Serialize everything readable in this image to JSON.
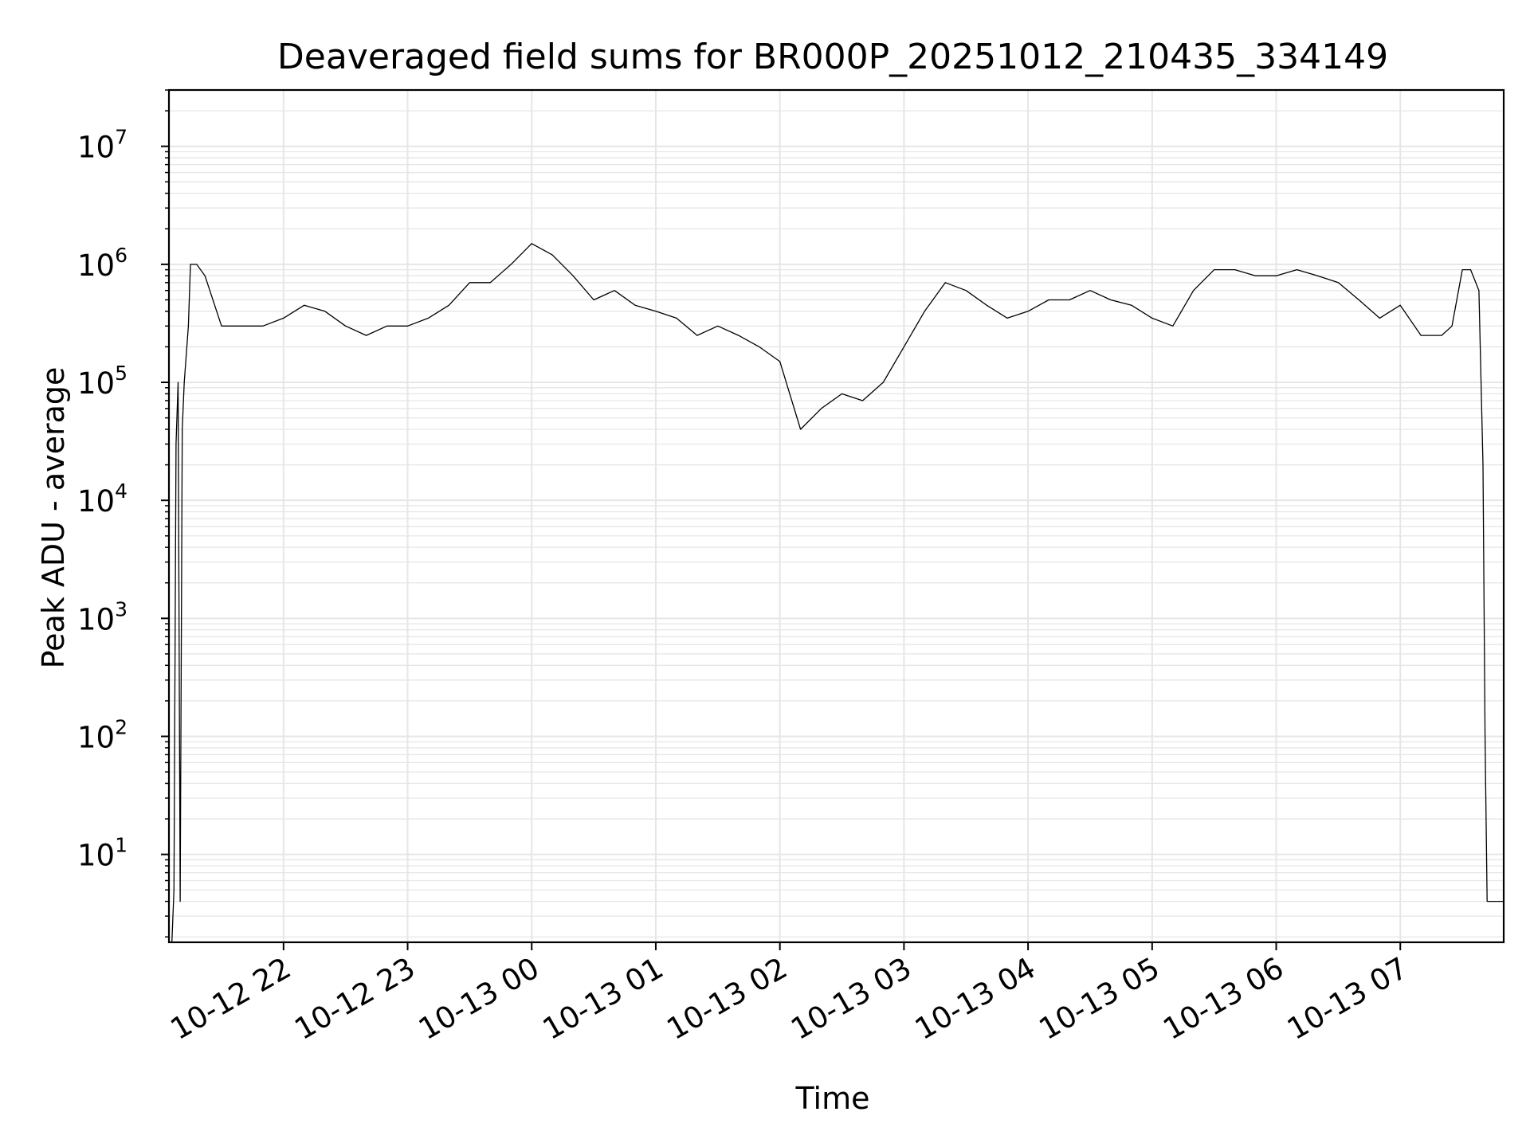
{
  "chart_data": {
    "type": "line",
    "title": "Deaveraged field sums for BR000P_20251012_210435_334149",
    "xlabel": "Time",
    "ylabel": "Peak ADU - average",
    "yscale": "log",
    "ylim": [
      1.8,
      30000000
    ],
    "xlim": [
      "2025-10-12T21:04:35",
      "2025-10-13T07:50:00"
    ],
    "grid": true,
    "grid_minor": true,
    "legend": "none",
    "line_color": "#000000",
    "grid_color": "#e6e6e6",
    "x_ticks": [
      {
        "t": "2025-10-12T22:00:00",
        "label": "10-12 22"
      },
      {
        "t": "2025-10-12T23:00:00",
        "label": "10-12 23"
      },
      {
        "t": "2025-10-13T00:00:00",
        "label": "10-13 00"
      },
      {
        "t": "2025-10-13T01:00:00",
        "label": "10-13 01"
      },
      {
        "t": "2025-10-13T02:00:00",
        "label": "10-13 02"
      },
      {
        "t": "2025-10-13T03:00:00",
        "label": "10-13 03"
      },
      {
        "t": "2025-10-13T04:00:00",
        "label": "10-13 04"
      },
      {
        "t": "2025-10-13T05:00:00",
        "label": "10-13 05"
      },
      {
        "t": "2025-10-13T06:00:00",
        "label": "10-13 06"
      },
      {
        "t": "2025-10-13T07:00:00",
        "label": "10-13 07"
      }
    ],
    "y_ticks": [
      {
        "value": 10,
        "base": "10",
        "exp": "1"
      },
      {
        "value": 100,
        "base": "10",
        "exp": "2"
      },
      {
        "value": 1000,
        "base": "10",
        "exp": "3"
      },
      {
        "value": 10000,
        "base": "10",
        "exp": "4"
      },
      {
        "value": 100000,
        "base": "10",
        "exp": "5"
      },
      {
        "value": 1000000,
        "base": "10",
        "exp": "6"
      },
      {
        "value": 10000000,
        "base": "10",
        "exp": "7"
      }
    ],
    "series": [
      {
        "x": [
          "2025-10-12T21:06:00",
          "2025-10-12T21:07:00",
          "2025-10-12T21:08:00",
          "2025-10-12T21:09:00",
          "2025-10-12T21:10:00",
          "2025-10-12T21:11:00",
          "2025-10-12T21:12:00",
          "2025-10-12T21:14:00",
          "2025-10-12T21:15:00",
          "2025-10-12T21:18:00",
          "2025-10-12T21:22:00",
          "2025-10-12T21:30:00",
          "2025-10-12T21:40:00",
          "2025-10-12T21:50:00",
          "2025-10-12T22:00:00",
          "2025-10-12T22:10:00",
          "2025-10-12T22:20:00",
          "2025-10-12T22:30:00",
          "2025-10-12T22:40:00",
          "2025-10-12T22:50:00",
          "2025-10-12T23:00:00",
          "2025-10-12T23:10:00",
          "2025-10-12T23:20:00",
          "2025-10-12T23:30:00",
          "2025-10-12T23:40:00",
          "2025-10-12T23:50:00",
          "2025-10-13T00:00:00",
          "2025-10-13T00:10:00",
          "2025-10-13T00:20:00",
          "2025-10-13T00:30:00",
          "2025-10-13T00:40:00",
          "2025-10-13T00:50:00",
          "2025-10-13T01:00:00",
          "2025-10-13T01:10:00",
          "2025-10-13T01:20:00",
          "2025-10-13T01:30:00",
          "2025-10-13T01:40:00",
          "2025-10-13T01:50:00",
          "2025-10-13T02:00:00",
          "2025-10-13T02:10:00",
          "2025-10-13T02:20:00",
          "2025-10-13T02:30:00",
          "2025-10-13T02:40:00",
          "2025-10-13T02:50:00",
          "2025-10-13T03:00:00",
          "2025-10-13T03:10:00",
          "2025-10-13T03:20:00",
          "2025-10-13T03:30:00",
          "2025-10-13T03:40:00",
          "2025-10-13T03:50:00",
          "2025-10-13T04:00:00",
          "2025-10-13T04:10:00",
          "2025-10-13T04:20:00",
          "2025-10-13T04:30:00",
          "2025-10-13T04:40:00",
          "2025-10-13T04:50:00",
          "2025-10-13T05:00:00",
          "2025-10-13T05:10:00",
          "2025-10-13T05:20:00",
          "2025-10-13T05:30:00",
          "2025-10-13T05:40:00",
          "2025-10-13T05:50:00",
          "2025-10-13T06:00:00",
          "2025-10-13T06:10:00",
          "2025-10-13T06:20:00",
          "2025-10-13T06:30:00",
          "2025-10-13T06:40:00",
          "2025-10-13T06:50:00",
          "2025-10-13T07:00:00",
          "2025-10-13T07:10:00",
          "2025-10-13T07:20:00",
          "2025-10-13T07:25:00",
          "2025-10-13T07:30:00",
          "2025-10-13T07:34:00",
          "2025-10-13T07:38:00",
          "2025-10-13T07:40:00",
          "2025-10-13T07:41:00",
          "2025-10-13T07:42:00",
          "2025-10-13T07:50:00"
        ],
        "y": [
          1.8,
          5,
          30000,
          100000,
          4,
          40000,
          100000,
          300000,
          1000000,
          1000000,
          800000,
          300000,
          300000,
          300000,
          350000,
          450000,
          400000,
          300000,
          250000,
          300000,
          300000,
          350000,
          450000,
          700000,
          700000,
          1000000,
          1500000,
          1200000,
          800000,
          500000,
          600000,
          450000,
          400000,
          350000,
          250000,
          300000,
          250000,
          200000,
          150000,
          40000,
          60000,
          80000,
          70000,
          100000,
          200000,
          400000,
          700000,
          600000,
          450000,
          350000,
          400000,
          500000,
          500000,
          600000,
          500000,
          450000,
          350000,
          300000,
          600000,
          900000,
          900000,
          800000,
          800000,
          900000,
          800000,
          700000,
          500000,
          350000,
          450000,
          250000,
          250000,
          300000,
          900000,
          900000,
          600000,
          20000,
          100,
          4,
          4
        ]
      }
    ]
  }
}
